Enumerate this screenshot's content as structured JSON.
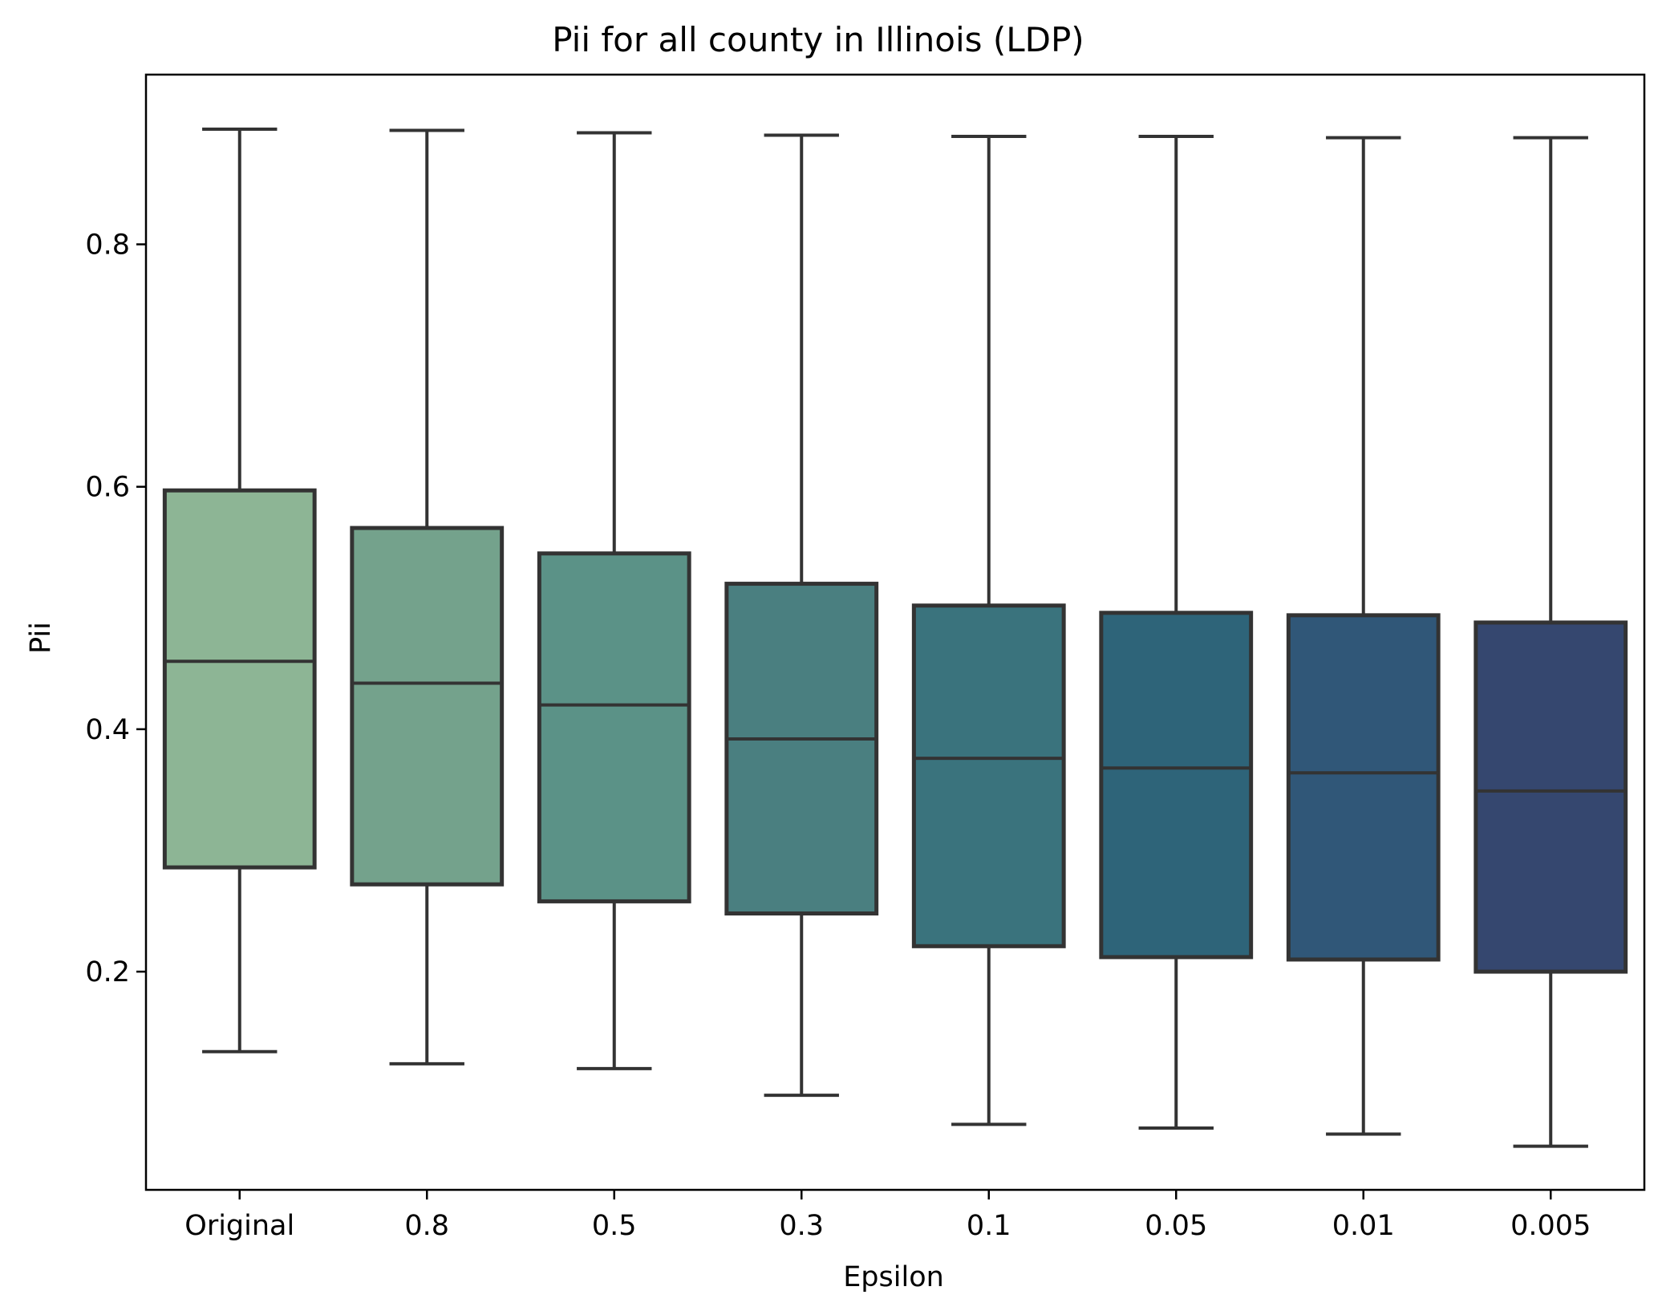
{
  "chart_data": {
    "type": "box",
    "title": "Pii for all county in Illinois (LDP)",
    "xlabel": "Epsilon",
    "ylabel": "Pii",
    "ylim": [
      0.02,
      0.94
    ],
    "yticks": [
      0.2,
      0.4,
      0.6,
      0.8
    ],
    "ytick_labels": [
      "0.2",
      "0.4",
      "0.6",
      "0.8"
    ],
    "grid": false,
    "legend": "none",
    "categories": [
      "Original",
      "0.8",
      "0.5",
      "0.3",
      "0.1",
      "0.05",
      "0.01",
      "0.005"
    ],
    "colors": [
      "#8db595",
      "#74a28c",
      "#5b9287",
      "#4a7f80",
      "#3a737d",
      "#2e6479",
      "#305778",
      "#35476f"
    ],
    "boxes": [
      {
        "min": 0.134,
        "q1": 0.286,
        "median": 0.456,
        "q3": 0.597,
        "max": 0.895
      },
      {
        "min": 0.124,
        "q1": 0.272,
        "median": 0.438,
        "q3": 0.566,
        "max": 0.894
      },
      {
        "min": 0.12,
        "q1": 0.258,
        "median": 0.42,
        "q3": 0.545,
        "max": 0.892
      },
      {
        "min": 0.098,
        "q1": 0.248,
        "median": 0.392,
        "q3": 0.52,
        "max": 0.89
      },
      {
        "min": 0.074,
        "q1": 0.221,
        "median": 0.376,
        "q3": 0.502,
        "max": 0.889
      },
      {
        "min": 0.071,
        "q1": 0.212,
        "median": 0.368,
        "q3": 0.496,
        "max": 0.889
      },
      {
        "min": 0.066,
        "q1": 0.21,
        "median": 0.364,
        "q3": 0.494,
        "max": 0.888
      },
      {
        "min": 0.056,
        "q1": 0.2,
        "median": 0.349,
        "q3": 0.488,
        "max": 0.888
      }
    ]
  }
}
